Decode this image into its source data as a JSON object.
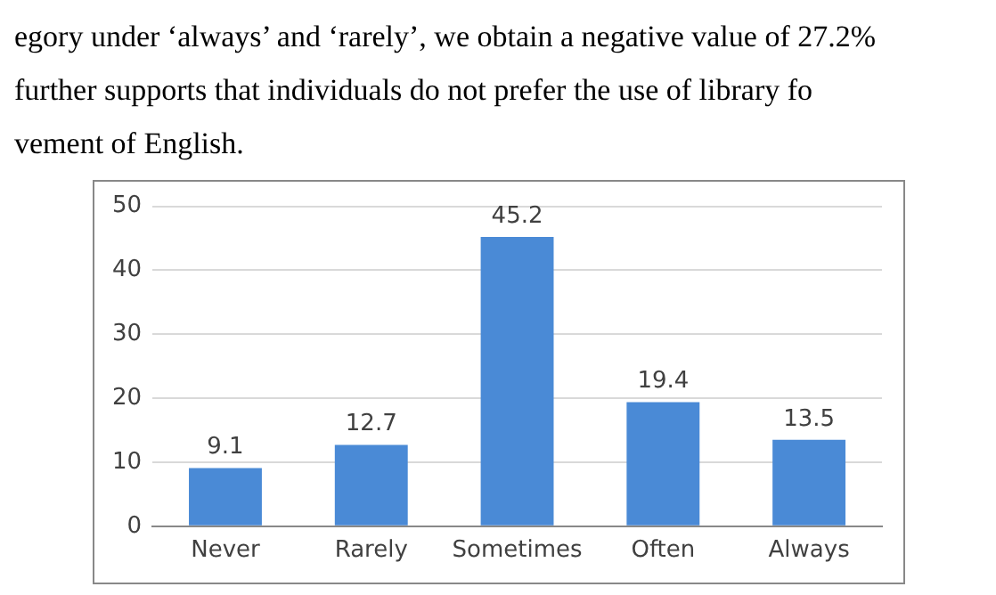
{
  "chart_data": {
    "type": "bar",
    "annotations": [
      "egory under ‘always’ and  ‘rarely’, we obtain a negative value of  27.2%",
      "further supports that individuals do not prefer the use of library fo",
      "vement of English."
    ],
    "categories": [
      "Never",
      "Rarely",
      "Sometimes",
      "Often",
      "Always"
    ],
    "values": [
      9.1,
      12.7,
      45.2,
      19.4,
      13.5
    ],
    "color": "#4a8ad6",
    "ylim": [
      0,
      50
    ],
    "yticks": [
      0,
      10,
      20,
      30,
      40,
      50
    ],
    "grid": "y",
    "data_labels": true,
    "legend": false
  }
}
